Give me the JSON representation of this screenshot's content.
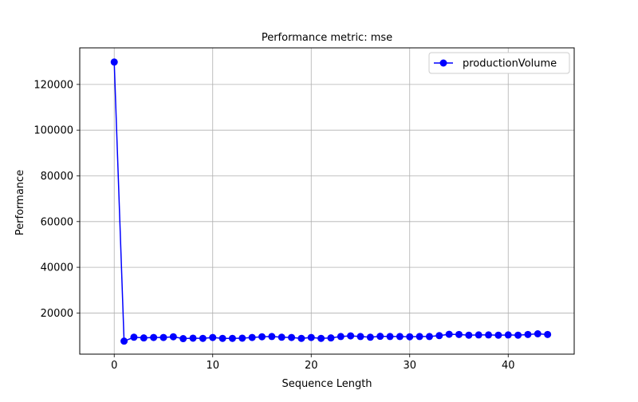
{
  "chart_data": {
    "type": "line",
    "title": "Performance metric: mse",
    "xlabel": "Sequence Length",
    "ylabel": "Performance",
    "xlim": [
      -3.5,
      46.7
    ],
    "ylim": [
      2000,
      136000
    ],
    "xticks": [
      0,
      10,
      20,
      30,
      40
    ],
    "yticks": [
      20000,
      40000,
      60000,
      80000,
      100000,
      120000
    ],
    "grid": true,
    "legend_position": "top-right",
    "series": [
      {
        "name": "productionVolume",
        "color": "#0000ff",
        "marker": "circle",
        "x": [
          0,
          1,
          2,
          3,
          4,
          5,
          6,
          7,
          8,
          9,
          10,
          11,
          12,
          13,
          14,
          15,
          16,
          17,
          18,
          19,
          20,
          21,
          22,
          23,
          24,
          25,
          26,
          27,
          28,
          29,
          30,
          31,
          32,
          33,
          34,
          35,
          36,
          37,
          38,
          39,
          40,
          41,
          42,
          43,
          44
        ],
        "values": [
          129800,
          7700,
          9400,
          9100,
          9300,
          9300,
          9600,
          8800,
          9000,
          8900,
          9300,
          8900,
          8900,
          9000,
          9300,
          9600,
          9700,
          9400,
          9300,
          8900,
          9300,
          8900,
          9100,
          9700,
          10000,
          9700,
          9400,
          9800,
          9700,
          9700,
          9600,
          9700,
          9700,
          10100,
          10700,
          10600,
          10300,
          10400,
          10400,
          10300,
          10400,
          10300,
          10600,
          10900,
          10600
        ]
      }
    ]
  }
}
